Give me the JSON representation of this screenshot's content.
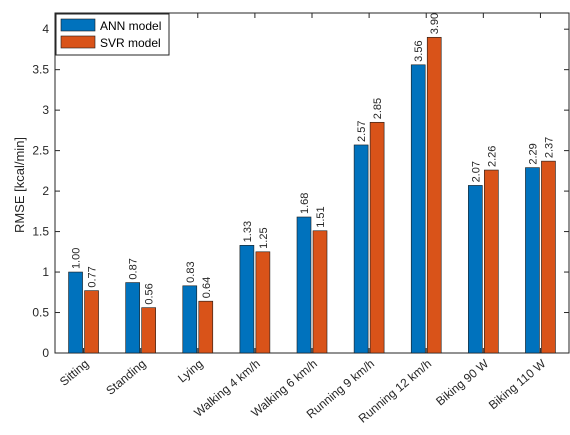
{
  "chart_data": {
    "type": "bar",
    "title": "",
    "xlabel": "",
    "ylabel": "RMSE [kcal/min]",
    "ylim": [
      0,
      4.2
    ],
    "yticks": [
      0,
      0.5,
      1,
      1.5,
      2,
      2.5,
      3,
      3.5,
      4
    ],
    "ytick_labels": [
      "0",
      "0.5",
      "1",
      "1.5",
      "2",
      "2.5",
      "3",
      "3.5",
      "4"
    ],
    "grid": false,
    "legend_position": "top-left",
    "categories": [
      "Sitting",
      "Standing",
      "Lying",
      "Walking 4 km/h",
      "Walking 6 km/h",
      "Running 9 km/h",
      "Running 12 km/h",
      "Biking 90 W",
      "Biking 110 W"
    ],
    "series": [
      {
        "name": "ANN model",
        "color": "#0072BD",
        "values": [
          1.0,
          0.87,
          0.83,
          1.33,
          1.68,
          2.57,
          3.56,
          2.07,
          2.29
        ],
        "labels": [
          "1.00",
          "0.87",
          "0.83",
          "1.33",
          "1.68",
          "2.57",
          "3.56",
          "2.07",
          "2.29"
        ]
      },
      {
        "name": "SVR model",
        "color": "#D95319",
        "values": [
          0.77,
          0.56,
          0.64,
          1.25,
          1.51,
          2.85,
          3.9,
          2.26,
          2.37
        ],
        "labels": [
          "0.77",
          "0.56",
          "0.64",
          "1.25",
          "1.51",
          "2.85",
          "3.90",
          "2.26",
          "2.37"
        ]
      }
    ]
  }
}
